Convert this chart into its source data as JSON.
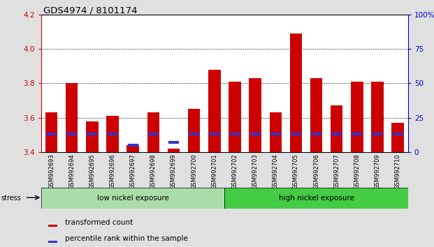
{
  "title": "GDS4974 / 8101174",
  "samples": [
    "GSM992693",
    "GSM992694",
    "GSM992695",
    "GSM992696",
    "GSM992697",
    "GSM992698",
    "GSM992699",
    "GSM992700",
    "GSM992701",
    "GSM992702",
    "GSM992703",
    "GSM992704",
    "GSM992705",
    "GSM992706",
    "GSM992707",
    "GSM992708",
    "GSM992709",
    "GSM992710"
  ],
  "transformed_count": [
    3.63,
    3.8,
    3.58,
    3.61,
    3.44,
    3.63,
    3.42,
    3.65,
    3.88,
    3.81,
    3.83,
    3.63,
    4.09,
    3.83,
    3.67,
    3.81,
    3.81,
    3.57
  ],
  "percentile_rank": [
    13,
    13,
    13,
    13,
    5,
    13,
    7,
    13,
    13,
    13,
    13,
    13,
    13,
    13,
    13,
    13,
    13,
    13
  ],
  "y_min": 3.4,
  "y_max": 4.2,
  "y_ticks_left": [
    3.4,
    3.6,
    3.8,
    4.0,
    4.2
  ],
  "y_ticks_right": [
    0,
    25,
    50,
    75,
    100
  ],
  "bar_color_red": "#cc0000",
  "bar_color_blue": "#3333cc",
  "background_fig": "#e0e0e0",
  "background_plot": "#ffffff",
  "low_nickel_indices": [
    0,
    1,
    2,
    3,
    4,
    5,
    6,
    7,
    8
  ],
  "high_nickel_indices": [
    9,
    10,
    11,
    12,
    13,
    14,
    15,
    16,
    17
  ],
  "low_nickel_label": "low nickel exposure",
  "high_nickel_label": "high nickel exposure",
  "low_nickel_color": "#aaddaa",
  "high_nickel_color": "#44cc44",
  "stress_label": "stress",
  "legend_red": "transformed count",
  "legend_blue": "percentile rank within the sample",
  "color_left": "#cc0000",
  "color_right": "#0000cc",
  "dotted_lines": [
    3.6,
    3.8,
    4.0
  ],
  "bar_width": 0.6
}
